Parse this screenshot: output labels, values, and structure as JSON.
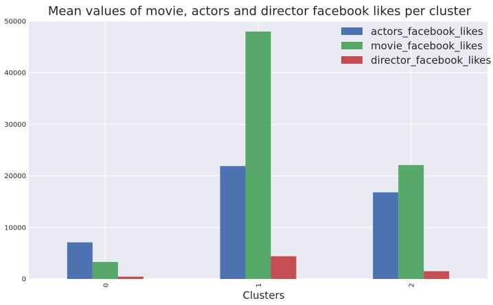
{
  "chart_data": {
    "type": "bar",
    "title": "Mean values of movie, actors and director facebook likes per cluster",
    "xlabel": "Clusters",
    "ylabel": "",
    "categories": [
      "0",
      "1",
      "2"
    ],
    "series": [
      {
        "name": "actors_facebook_likes",
        "color": "#4c72b0",
        "values": [
          7100,
          21900,
          16800
        ]
      },
      {
        "name": "movie_facebook_likes",
        "color": "#55a868",
        "values": [
          3300,
          48000,
          22100
        ]
      },
      {
        "name": "director_facebook_likes",
        "color": "#c44e52",
        "values": [
          450,
          4400,
          1500
        ]
      }
    ],
    "ylim": [
      0,
      50000
    ],
    "yticks": [
      0,
      10000,
      20000,
      30000,
      40000,
      50000
    ],
    "ytick_labels": [
      "0",
      "10000",
      "20000",
      "30000",
      "40000",
      "50000"
    ],
    "grid": true,
    "legend_position": "top-right",
    "background_color": "#eaeaf2",
    "grid_color": "#ffffff"
  }
}
